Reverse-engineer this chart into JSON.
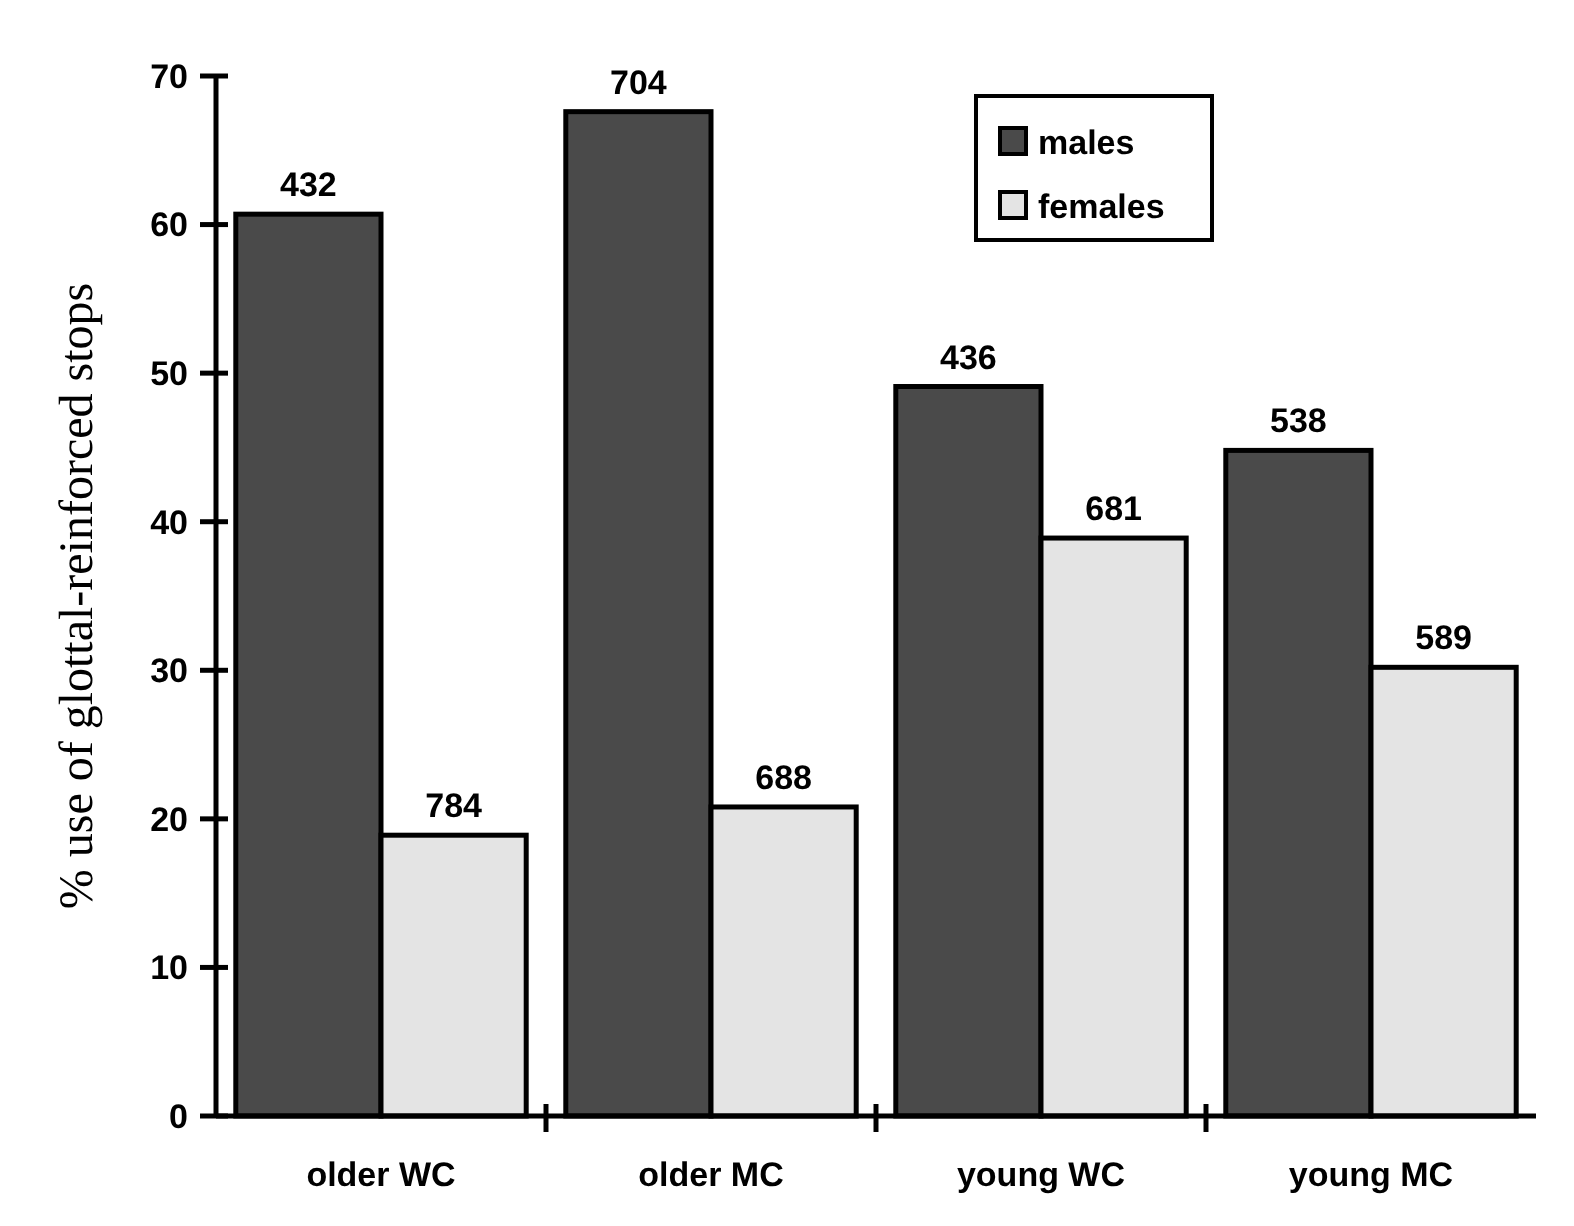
{
  "chart_data": {
    "type": "bar",
    "ylabel": "% use of glottal-reinforced stops",
    "categories": [
      "older WC",
      "older MC",
      "young WC",
      "young MC"
    ],
    "series": [
      {
        "name": "males",
        "color": "#4a4a4a",
        "values": [
          60.7,
          67.6,
          49.1,
          44.8
        ]
      },
      {
        "name": "females",
        "color": "#e4e4e4",
        "values": [
          18.9,
          20.8,
          38.9,
          30.2
        ]
      }
    ],
    "ylim": [
      0,
      70
    ],
    "yticks": [
      0,
      10,
      20,
      30,
      40,
      50,
      60,
      70
    ],
    "grid": false,
    "legend": "top right",
    "annotations": [
      {
        "text": "432",
        "x": "older WC",
        "y": 60.7
      },
      {
        "text": "784",
        "x": "older WC",
        "y": 18.9
      },
      {
        "text": "704",
        "x": "older MC",
        "y": 67.6
      },
      {
        "text": "688",
        "x": "older MC",
        "y": 20.8
      },
      {
        "text": "436",
        "x": "young WC",
        "y": 49.1
      },
      {
        "text": "681",
        "x": "young WC",
        "y": 38.9
      },
      {
        "text": "538",
        "x": "young MC",
        "y": 44.8
      },
      {
        "text": "589",
        "x": "young MC",
        "y": 30.2
      }
    ]
  }
}
